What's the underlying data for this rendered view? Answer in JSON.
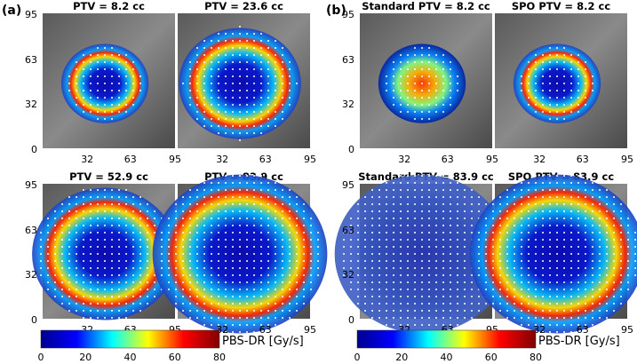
{
  "panels_group_labels": [
    "(a)",
    "(b)"
  ],
  "panels": [
    {
      "title": "PTV = 8.2 cc",
      "group": 0,
      "row": 0,
      "col": 0,
      "style": "hot",
      "size": 0.3
    },
    {
      "title": "PTV = 23.6 cc",
      "group": 0,
      "row": 0,
      "col": 1,
      "style": "hot",
      "size": 0.42
    },
    {
      "title": "PTV = 52.9 cc",
      "group": 0,
      "row": 1,
      "col": 0,
      "style": "hot",
      "size": 0.5
    },
    {
      "title": "PTV = 83.9 cc",
      "group": 0,
      "row": 1,
      "col": 1,
      "style": "hot",
      "size": 0.6
    },
    {
      "title": "Standard PTV = 8.2 cc",
      "group": 1,
      "row": 0,
      "col": 0,
      "style": "flat",
      "size": 0.3
    },
    {
      "title": "SPO PTV = 8.2 cc",
      "group": 1,
      "row": 0,
      "col": 1,
      "style": "hot",
      "size": 0.3
    },
    {
      "title": "Standard PTV = 83.9 cc",
      "group": 1,
      "row": 1,
      "col": 0,
      "style": "cold",
      "size": 0.6
    },
    {
      "title": "SPO PTV = 83.9 cc",
      "group": 1,
      "row": 1,
      "col": 1,
      "style": "hot",
      "size": 0.6
    }
  ],
  "axis": {
    "range": [
      0,
      95
    ],
    "y_ticks": [
      "95",
      "63",
      "32",
      "0"
    ],
    "x_ticks": [
      "32",
      "63",
      "95"
    ]
  },
  "colorbar": {
    "label": "PBS-DR [Gy/s]",
    "range": [
      0,
      80
    ],
    "ticks": [
      "0",
      "20",
      "40",
      "60",
      "80"
    ],
    "colormap": [
      "#00008f",
      "#0000ff",
      "#00ffff",
      "#ffff00",
      "#ff0000",
      "#800000"
    ]
  }
}
